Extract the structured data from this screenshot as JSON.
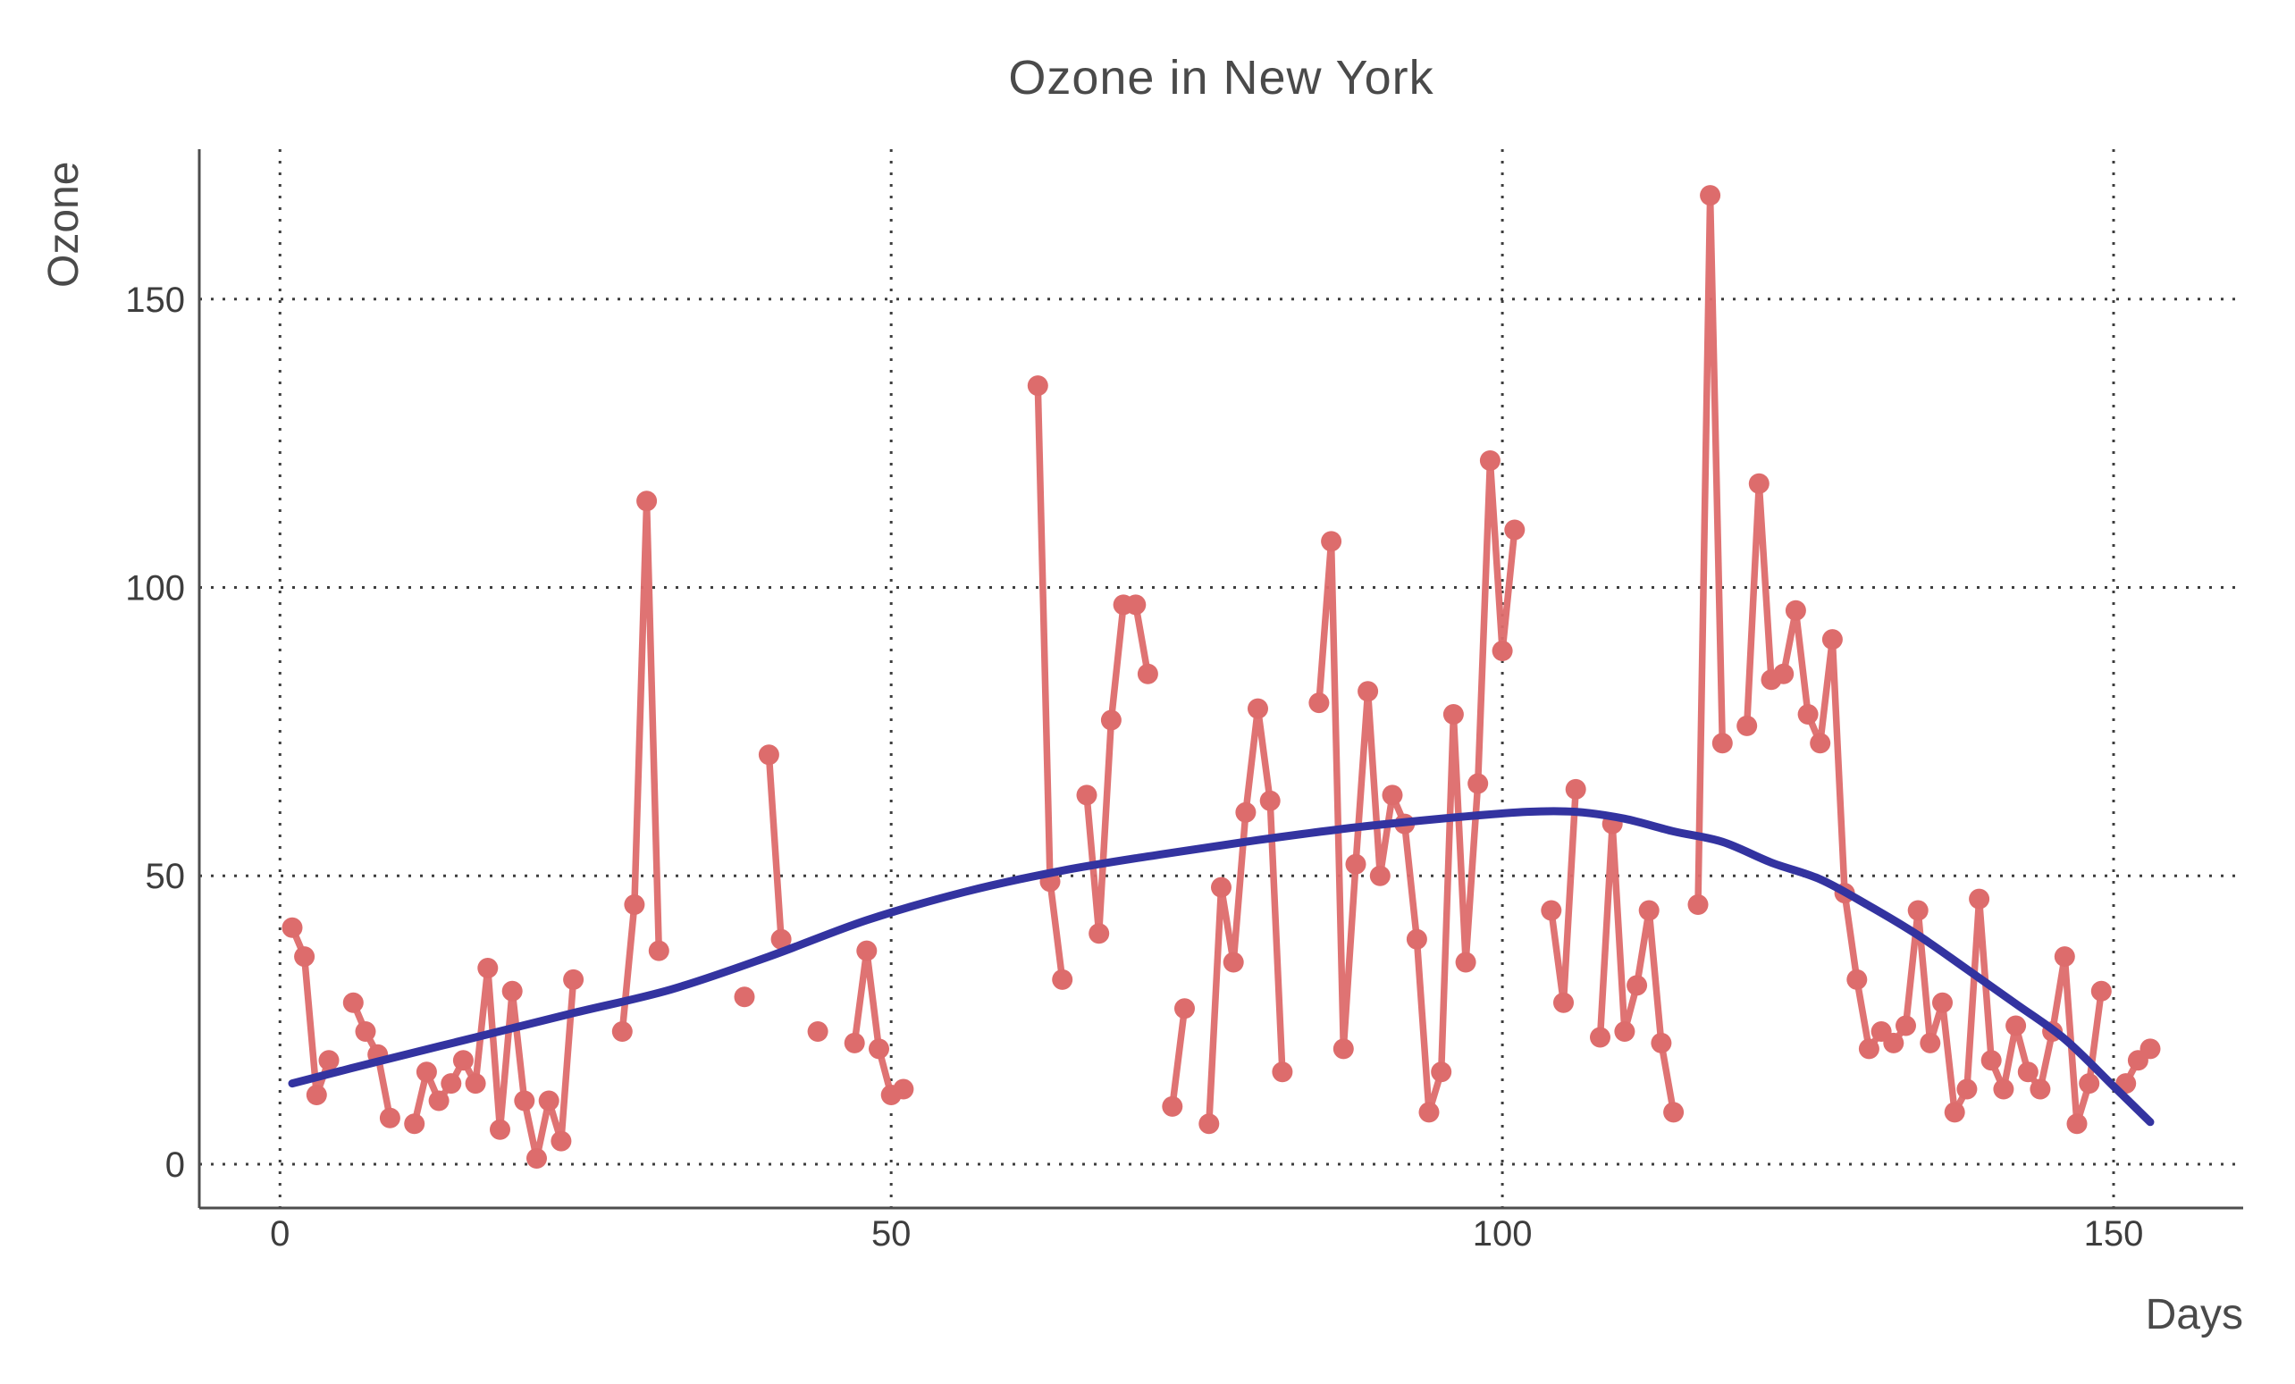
{
  "chart_data": {
    "type": "scatter",
    "title": "Ozone in New York",
    "xlabel": "Days",
    "ylabel": "Ozone",
    "x_ticks": [
      0,
      50,
      100,
      150
    ],
    "y_ticks": [
      0,
      50,
      100,
      150
    ],
    "x_range": [
      -6.6,
      160.6
    ],
    "y_range": [
      -7.6,
      176
    ],
    "grid": "dotted",
    "legend": "none",
    "colors": {
      "points": "#dd6c6c",
      "smooth": "#3333a0"
    },
    "series": [
      {
        "name": "ozone-observed",
        "style": "points-with-line",
        "color": "#dd6c6c",
        "x_start": 1,
        "values": [
          41,
          36,
          12,
          18,
          null,
          28,
          23,
          19,
          8,
          null,
          7,
          16,
          11,
          14,
          18,
          14,
          34,
          6,
          30,
          11,
          1,
          11,
          4,
          32,
          null,
          null,
          null,
          23,
          45,
          115,
          37,
          null,
          null,
          null,
          null,
          null,
          null,
          29,
          null,
          71,
          39,
          null,
          null,
          23,
          null,
          null,
          21,
          37,
          20,
          12,
          13,
          null,
          null,
          null,
          null,
          null,
          null,
          null,
          null,
          null,
          null,
          135,
          49,
          32,
          null,
          64,
          40,
          77,
          97,
          97,
          85,
          null,
          10,
          27,
          null,
          7,
          48,
          35,
          61,
          79,
          63,
          16,
          null,
          null,
          80,
          108,
          20,
          52,
          82,
          50,
          64,
          59,
          39,
          9,
          16,
          78,
          35,
          66,
          122,
          89,
          110,
          null,
          null,
          44,
          28,
          65,
          null,
          22,
          59,
          23,
          31,
          44,
          21,
          9,
          null,
          45,
          168,
          73,
          null,
          76,
          118,
          84,
          85,
          96,
          78,
          73,
          91,
          47,
          32,
          20,
          23,
          21,
          24,
          44,
          21,
          28,
          9,
          13,
          46,
          18,
          13,
          24,
          16,
          13,
          23,
          36,
          7,
          14,
          30,
          null,
          14,
          18,
          20
        ]
      },
      {
        "name": "loess-smooth",
        "style": "smooth-line",
        "color": "#3333a0",
        "points": [
          [
            1,
            14
          ],
          [
            8,
            17.8
          ],
          [
            16,
            22
          ],
          [
            24,
            26.2
          ],
          [
            32,
            30.3
          ],
          [
            40,
            36
          ],
          [
            48,
            42.3
          ],
          [
            56,
            47.2
          ],
          [
            64,
            50.9
          ],
          [
            72,
            53.7
          ],
          [
            80,
            56.2
          ],
          [
            88,
            58.4
          ],
          [
            96,
            60.1
          ],
          [
            102,
            61.1
          ],
          [
            106,
            61.1
          ],
          [
            110,
            59.9
          ],
          [
            114,
            57.7
          ],
          [
            118,
            55.9
          ],
          [
            122,
            52.3
          ],
          [
            126,
            49.4
          ],
          [
            130,
            44.8
          ],
          [
            134,
            39.7
          ],
          [
            138,
            33.8
          ],
          [
            142,
            27.8
          ],
          [
            146,
            21.7
          ],
          [
            150,
            13.5
          ],
          [
            153,
            7.3
          ]
        ]
      }
    ]
  }
}
